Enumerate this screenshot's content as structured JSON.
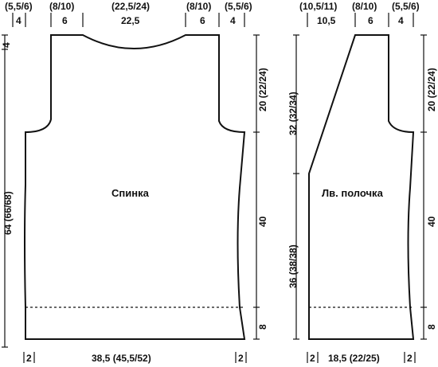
{
  "back": {
    "title": "Спинка",
    "top_labels": [
      "(5,5/6)",
      "(8/10)",
      "(22,5/24)",
      "(8/10)",
      "(5,5/6)"
    ],
    "top_values": [
      "4",
      "6",
      "22,5",
      "6",
      "4"
    ],
    "left_top": "4",
    "left_main": "64 (66/68)",
    "right_top": "20 (22/24)",
    "right_mid": "40",
    "right_bottom": "8",
    "bottom_left": "2",
    "bottom_center": "38,5 (45,5/52)",
    "bottom_right": "2"
  },
  "front": {
    "title": "Лв. полочка",
    "top_labels": [
      "(10,5/11)",
      "(8/10)",
      "(5,5/6)"
    ],
    "top_values": [
      "10,5",
      "6",
      "4"
    ],
    "left_top": "32 (32/34)",
    "left_bottom": "36 (38/38)",
    "right_top": "20 (22/24)",
    "right_mid": "40",
    "right_bottom": "8",
    "bottom_left": "2",
    "bottom_center": "18,5 (22/25)",
    "bottom_right": "2"
  }
}
